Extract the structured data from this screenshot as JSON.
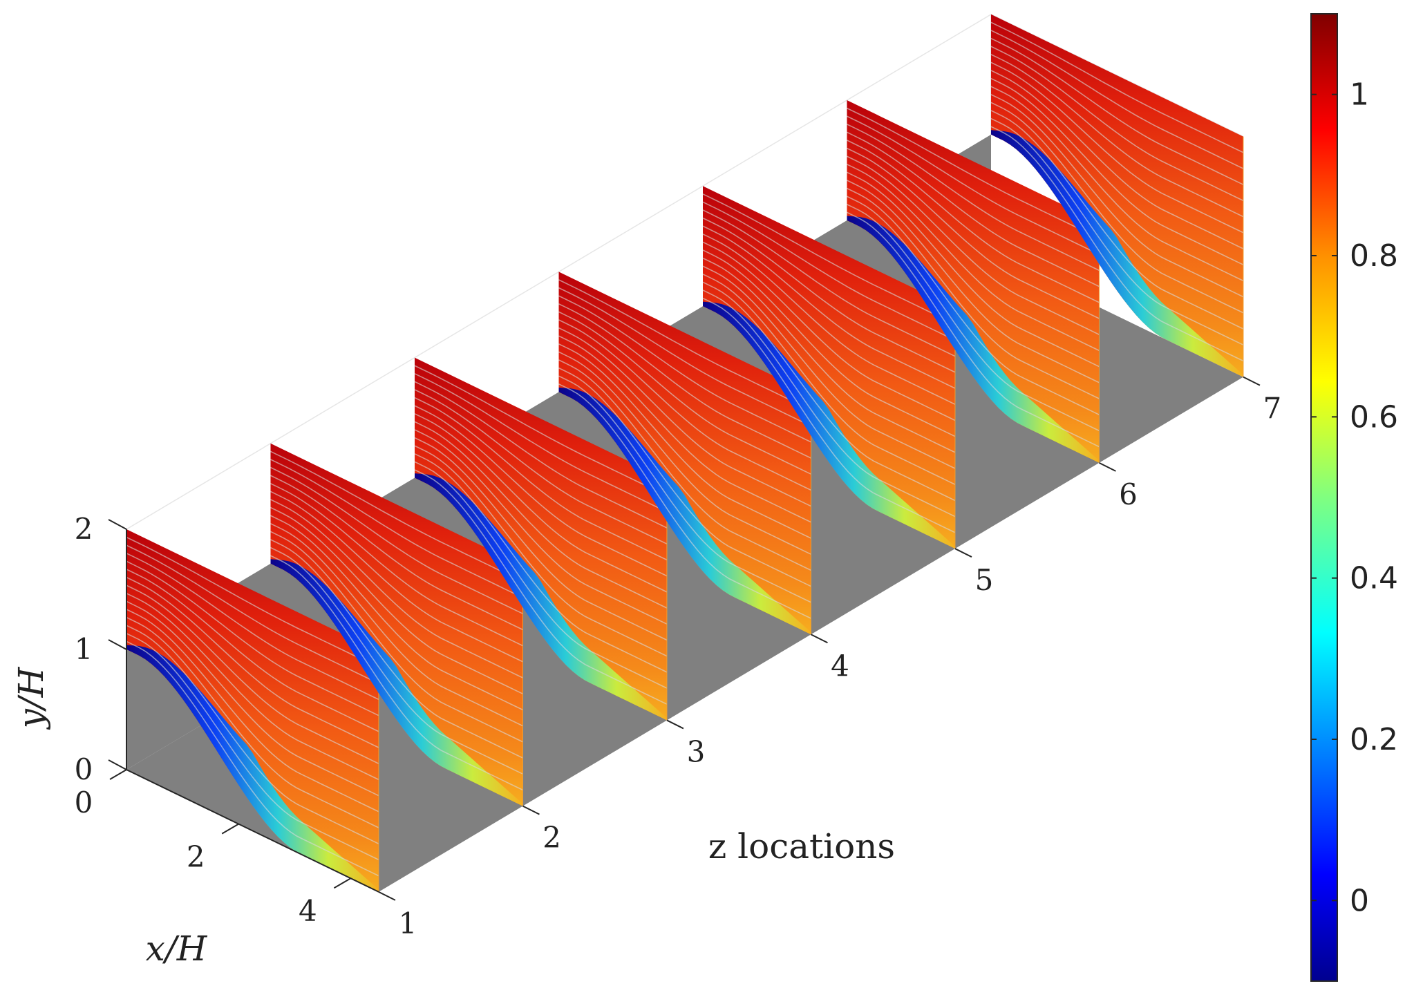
{
  "chart_data": {
    "type": "heatmap",
    "series": [
      {
        "name": "z = 1"
      },
      {
        "name": "z = 2"
      },
      {
        "name": "z = 3"
      },
      {
        "name": "z = 4"
      },
      {
        "name": "z = 5"
      },
      {
        "name": "z = 6"
      },
      {
        "name": "z = 7"
      }
    ],
    "z_locations": [
      1,
      2,
      3,
      4,
      5,
      6,
      7
    ],
    "z_tick_labels": [
      "1",
      "2",
      "3",
      "4",
      "5",
      "6",
      "7"
    ],
    "x_ticks": [
      0,
      2,
      4
    ],
    "x_tick_labels": [
      "0",
      "2",
      "4"
    ],
    "y_ticks": [
      0,
      1,
      2
    ],
    "y_tick_labels": [
      "0",
      "1",
      "2"
    ],
    "xlabel": "x/H",
    "ylabel": "y/H",
    "zlabel": "z locations",
    "xlim": [
      0,
      4.5
    ],
    "ylim": [
      0,
      2
    ],
    "zlim": [
      1,
      7
    ],
    "colorbar": {
      "min": -0.1,
      "max": 1.1,
      "ticks": [
        0,
        0.2,
        0.4,
        0.6,
        0.8,
        1
      ],
      "tick_labels": [
        "0",
        "0.2",
        "0.4",
        "0.6",
        "0.8",
        "1"
      ],
      "colormap": "jet"
    },
    "colors": {
      "floor": "#808080",
      "streamline": "#d9d9d9",
      "colormap_stops": [
        "#00008f",
        "#0000ff",
        "#0080ff",
        "#00ffff",
        "#80ff80",
        "#ffff00",
        "#ff8000",
        "#ff0000",
        "#800000"
      ]
    },
    "grid": false
  }
}
